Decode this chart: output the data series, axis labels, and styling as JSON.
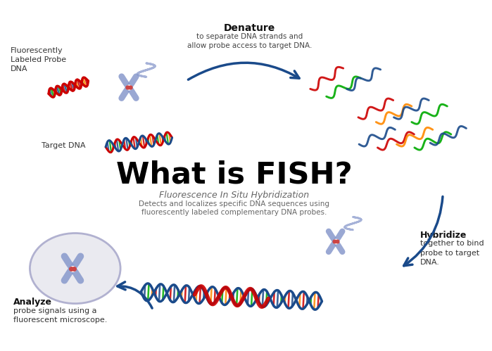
{
  "title": "What is FISH?",
  "subtitle_pre": "Fluorescence ",
  "subtitle_italic": "In Situ",
  "subtitle_post": " Hybridization",
  "desc1": "Detects and localizes specific DNA sequences using",
  "desc2": "fluorescently labeled complementary DNA probes.",
  "bg_color": "#ffffff",
  "title_color": "#000000",
  "subtitle_color": "#666666",
  "desc_color": "#666666",
  "label_color": "#333333",
  "arrow_color": "#1a4a8a",
  "label_probe": "Fluorescently\nLabeled Probe\nDNA",
  "label_target": "Target DNA",
  "label_denature_title": "Denature",
  "label_denature_body": "to separate DNA strands and\nallow probe access to target DNA.",
  "label_hybridize_title": "Hybridize",
  "label_hybridize_body": "together to bind\nprobe to target\nDNA.",
  "label_analyze_title": "Analyze",
  "label_analyze_body": "probe signals using a\nfluorescent microscope.",
  "c1": "#cc0000",
  "c2": "#1a4a8a",
  "c3": "#00aa00",
  "c4": "#ff8800",
  "chrom_color": "#8899cc",
  "chrom_accent": "#cc4444",
  "cell_face": "#e8e8ef",
  "cell_edge": "#aaaacc"
}
